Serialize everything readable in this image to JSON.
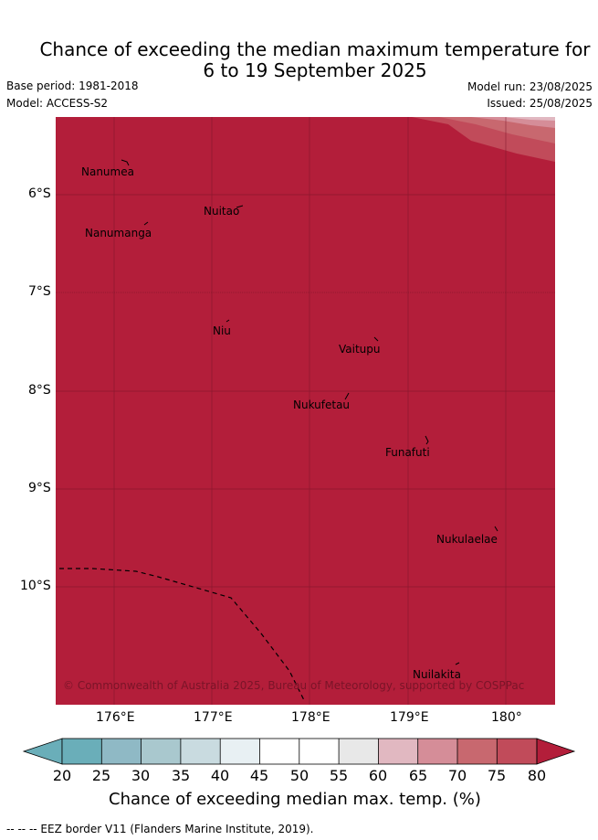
{
  "title": {
    "line1": "Chance of exceeding the median maximum temperature for",
    "line2": "6 to 19 September 2025"
  },
  "meta": {
    "base_period": "Base period: 1981-2018",
    "model": "Model: ACCESS-S2",
    "model_run": "Model run: 23/08/2025",
    "issued": "Issued: 25/08/2025"
  },
  "map": {
    "fill_color": "#b31e3a",
    "fill_category": "80",
    "copyright": "© Commonwealth of Australia 2025, Bureau of Meteorology, supported by COSPPac",
    "islands": [
      "Nanumea",
      "Nuitao",
      "Nanumanga",
      "Niu",
      "Vaitupu",
      "Nukufetau",
      "Funafuti",
      "Nukulaelae",
      "Nuilakita"
    ],
    "lat_labels": [
      "6°S",
      "7°S",
      "8°S",
      "9°S",
      "10°S"
    ],
    "lon_labels": [
      "176°E",
      "177°E",
      "178°E",
      "179°E",
      "180°"
    ]
  },
  "colorbar": {
    "ticks": [
      "20",
      "25",
      "30",
      "35",
      "40",
      "45",
      "50",
      "55",
      "60",
      "65",
      "70",
      "75",
      "80"
    ],
    "colors": {
      "below": "#6aaeb9",
      "c20_25": "#6aaeb9",
      "c25_30": "#8fb9c5",
      "c30_35": "#a9c8ce",
      "c35_40": "#c9dbe0",
      "c40_45": "#e8f0f3",
      "c45_50": "#ffffff",
      "c50_55": "#ffffff",
      "c55_60": "#e8e8e8",
      "c60_65": "#e1b8c1",
      "c65_70": "#d58d98",
      "c70_75": "#c8686f",
      "c75_80": "#c14b5a",
      "above": "#b31e3a"
    },
    "label": "Chance of exceeding median max. temp. (%)"
  },
  "footer": {
    "eez_note": "--  --  -- EEZ border V11 (Flanders Marine Institute, 2019)."
  }
}
